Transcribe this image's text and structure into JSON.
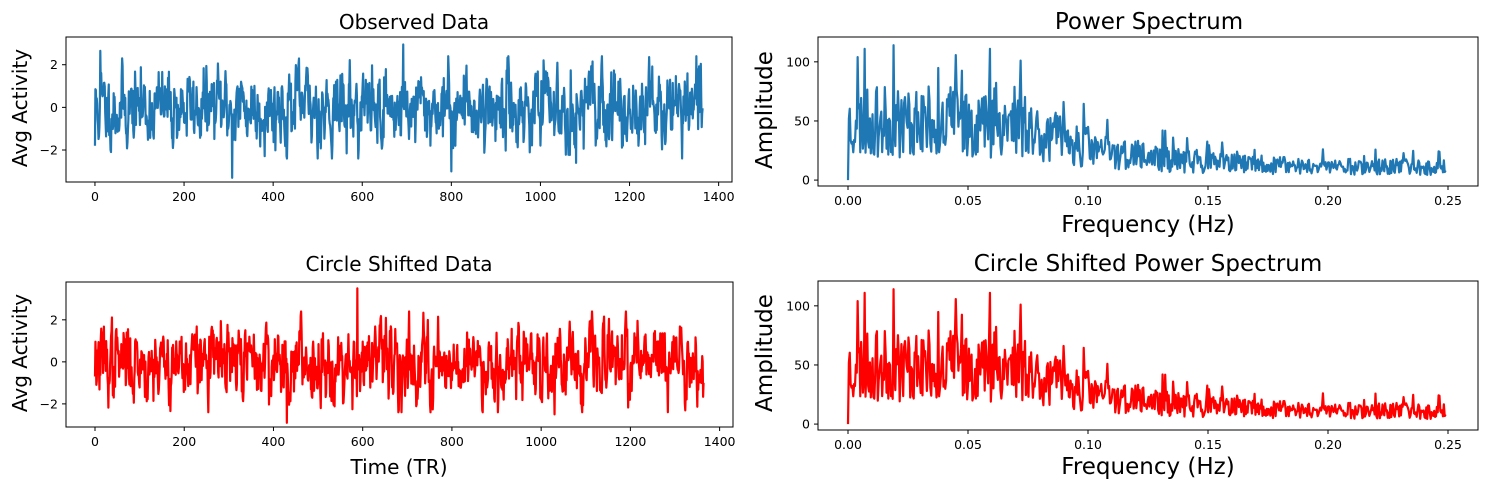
{
  "chart_data": [
    {
      "id": "observed",
      "type": "line",
      "title": "Observed Data",
      "xlabel": "",
      "ylabel": "Avg Activity",
      "xlim": [
        -65,
        1430
      ],
      "ylim": [
        -3.5,
        3.3
      ],
      "xticks": [
        0,
        200,
        400,
        600,
        800,
        1000,
        1200,
        1400
      ],
      "xtick_labels": [
        "0",
        "200",
        "400",
        "600",
        "800",
        "1000",
        "1200",
        "1400"
      ],
      "yticks": [
        -2,
        0,
        2
      ],
      "ytick_labels": [
        "−2",
        "0",
        "2"
      ],
      "color": "#1f77b4",
      "grid": false,
      "x_range": [
        0,
        1364
      ],
      "n_points": 1365,
      "seed": 11,
      "kind": "timeseries",
      "anchors": [
        {
          "x": 12,
          "y": 2.65
        },
        {
          "x": 308,
          "y": -3.3
        },
        {
          "x": 692,
          "y": 2.95
        },
        {
          "x": 800,
          "y": -3.0
        },
        {
          "x": 1080,
          "y": -2.6
        },
        {
          "x": 0,
          "y": -1.8
        }
      ]
    },
    {
      "id": "power",
      "type": "line",
      "title": "Power Spectrum",
      "xlabel": "Frequency (Hz)",
      "ylabel": "Amplitude",
      "xlim": [
        -0.0125,
        0.2625
      ],
      "ylim": [
        -5,
        121
      ],
      "xticks": [
        0.0,
        0.05,
        0.1,
        0.15,
        0.2,
        0.25
      ],
      "xtick_labels": [
        "0.00",
        "0.05",
        "0.10",
        "0.15",
        "0.20",
        "0.25"
      ],
      "yticks": [
        0,
        50,
        100
      ],
      "ytick_labels": [
        "0",
        "50",
        "100"
      ],
      "color": "#1f77b4",
      "grid": false,
      "x_range": [
        0,
        0.249
      ],
      "n_points": 683,
      "seed": 23,
      "kind": "spectrum",
      "anchors": [
        {
          "x": 0.0,
          "y": 0.0
        },
        {
          "x": 0.004,
          "y": 104
        },
        {
          "x": 0.007,
          "y": 111
        },
        {
          "x": 0.019,
          "y": 114
        },
        {
          "x": 0.059,
          "y": 111
        },
        {
          "x": 0.072,
          "y": 101
        }
      ]
    },
    {
      "id": "shifted",
      "type": "line",
      "title": "Circle Shifted Data",
      "xlabel": "Time (TR)",
      "ylabel": "Avg Activity",
      "xlim": [
        -65,
        1430
      ],
      "ylim": [
        -3.1,
        3.8
      ],
      "xticks": [
        0,
        200,
        400,
        600,
        800,
        1000,
        1200,
        1400
      ],
      "xtick_labels": [
        "0",
        "200",
        "400",
        "600",
        "800",
        "1000",
        "1200",
        "1400"
      ],
      "yticks": [
        -2,
        0,
        2
      ],
      "ytick_labels": [
        "−2",
        "0",
        "2"
      ],
      "color": "#ff0000",
      "grid": false,
      "x_range": [
        0,
        1364
      ],
      "n_points": 1365,
      "seed": 37,
      "kind": "timeseries",
      "anchors": [
        {
          "x": 588,
          "y": 3.5
        },
        {
          "x": 430,
          "y": -2.9
        },
        {
          "x": 0,
          "y": -0.7
        },
        {
          "x": 1030,
          "y": -2.5
        },
        {
          "x": 1364,
          "y": -1.0
        }
      ]
    },
    {
      "id": "shifted-power",
      "type": "line",
      "title": "Circle Shifted Power Spectrum",
      "xlabel": "Frequency (Hz)",
      "ylabel": "Amplitude",
      "xlim": [
        -0.0125,
        0.2625
      ],
      "ylim": [
        -5,
        121
      ],
      "xticks": [
        0.0,
        0.05,
        0.1,
        0.15,
        0.2,
        0.25
      ],
      "xtick_labels": [
        "0.00",
        "0.05",
        "0.10",
        "0.15",
        "0.20",
        "0.25"
      ],
      "yticks": [
        0,
        50,
        100
      ],
      "ytick_labels": [
        "0",
        "50",
        "100"
      ],
      "color": "#ff0000",
      "grid": false,
      "x_range": [
        0,
        0.249
      ],
      "n_points": 683,
      "seed": 23,
      "kind": "spectrum",
      "anchors": [
        {
          "x": 0.0,
          "y": 0.0
        },
        {
          "x": 0.004,
          "y": 104
        },
        {
          "x": 0.007,
          "y": 111
        },
        {
          "x": 0.019,
          "y": 114
        },
        {
          "x": 0.059,
          "y": 111
        },
        {
          "x": 0.072,
          "y": 101
        }
      ]
    }
  ]
}
